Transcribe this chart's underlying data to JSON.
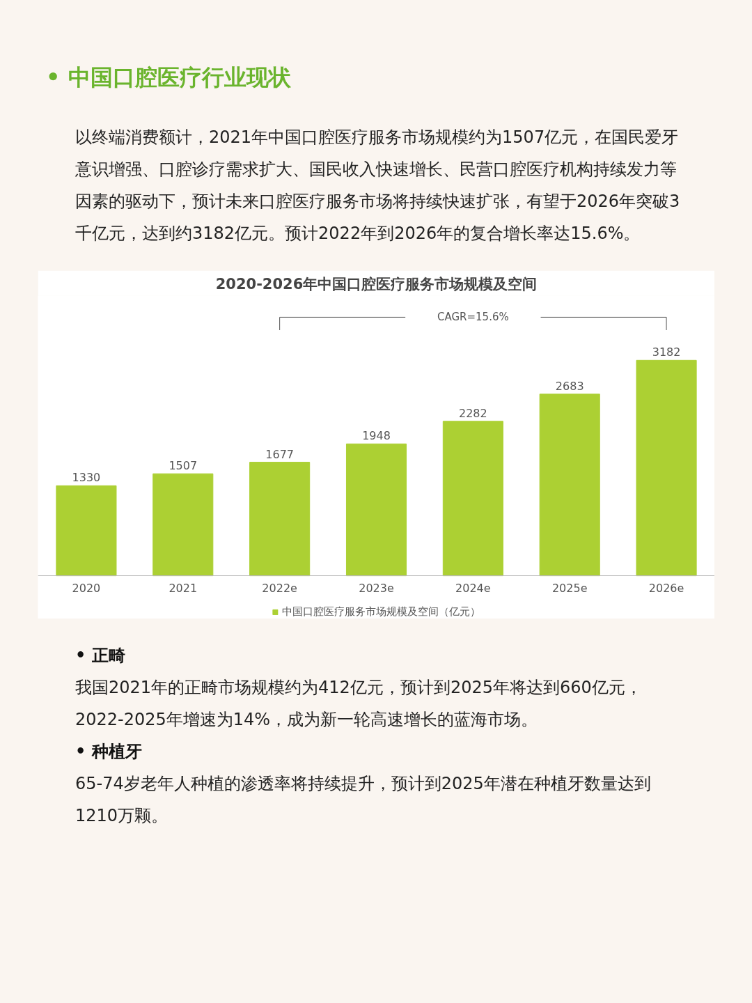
{
  "chart_data": {
    "type": "bar",
    "title": "2020-2026年中国口腔医疗服务市场规模及空间",
    "categories": [
      "2020",
      "2021",
      "2022e",
      "2023e",
      "2024e",
      "2025e",
      "2026e"
    ],
    "series": [
      {
        "name": "中国口腔医疗服务市场规模及空间（亿元）",
        "color": "#acd033",
        "values": [
          1330,
          1507,
          1677,
          1948,
          2282,
          2683,
          3182
        ]
      }
    ],
    "data_labels": true,
    "grid": false,
    "legend": "bottom",
    "tick_labels": "x",
    "annotations": [
      "•   中国口腔医疗行业现状",
      "以终端消费额计，2021年中国口腔医疗服务市场规模约为1507亿元，在国民爱牙意识增强、口腔诊疗需求扩大、国民收入快速增长、民营口腔医疗机构持续发力等因素的驱动下，预计未来口腔医疗服务市场将持续快速扩张，有望于2026年突破3千亿元，达到约3182亿元。预计2022年到2026年的复合增长率达15.6%。",
      "CAGR=15.6%",
      "•    正畸",
      "我国2021年的正畸市场规模约为412亿元，预计到2025年将达到660亿元，2022-2025年增速为14%，成为新一轮高速增长的蓝海市场。",
      "•    种植牙",
      "65-74岁老年人种植的渗透率将持续提升，预计到2025年潜在种植牙数量达到1210万颗。"
    ]
  }
}
